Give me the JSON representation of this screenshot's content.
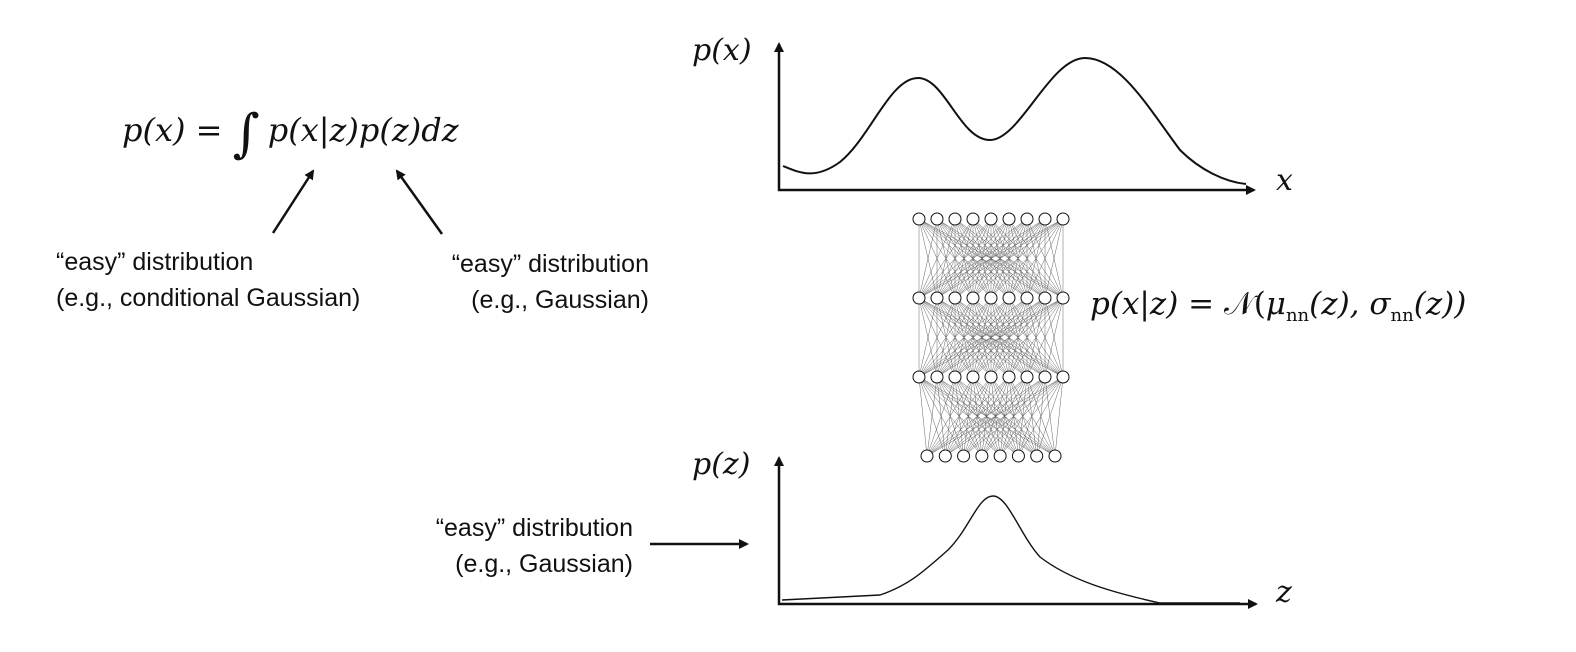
{
  "formula": {
    "lhs": "p(x) = ",
    "integral": "∫",
    "rhs": "p(x|z)p(z)dz"
  },
  "left_labels": {
    "conditional": [
      "“easy” distribution",
      "(e.g., conditional Gaussian)"
    ],
    "prior": [
      "“easy” distribution",
      "(e.g., Gaussian)"
    ]
  },
  "px_plot": {
    "y_label": "p(x)",
    "x_label": "x"
  },
  "pz_plot": {
    "y_label": "p(z)",
    "x_label": "z"
  },
  "likelihood_formula": "p(x|z) = 𝒩(μnn(z), σnn(z))",
  "likelihood_parts": {
    "lhs": "p(x|z) = ",
    "N": "𝒩",
    "open": "(",
    "mu": "μ",
    "nn": "nn",
    "mu_arg": "(z), ",
    "sigma": "σ",
    "sigma_arg": "(z))"
  },
  "bottom_label": [
    "“easy” distribution",
    "(e.g., Gaussian)"
  ],
  "network": {
    "layers": [
      9,
      9,
      9,
      8
    ]
  },
  "colors": {
    "ink": "#111111",
    "network_line": "#555555"
  }
}
